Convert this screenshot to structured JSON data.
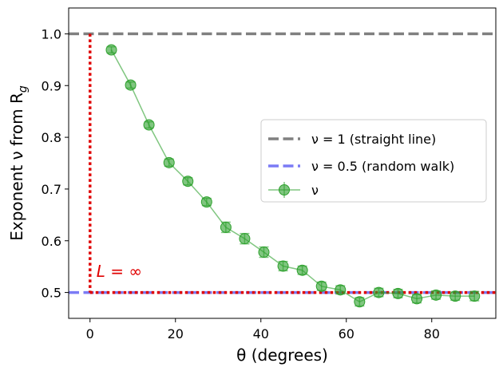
{
  "chart_data": {
    "type": "line",
    "title": "",
    "xlabel": "θ (degrees)",
    "ylabel": "Exponent ν from R",
    "ylabel_subscript": "g",
    "xlim": [
      -5,
      95
    ],
    "ylim": [
      0.45,
      1.05
    ],
    "xticks": [
      0,
      20,
      40,
      60,
      80
    ],
    "xtick_labels": [
      "0",
      "20",
      "40",
      "60",
      "80"
    ],
    "yticks": [
      0.5,
      0.6,
      0.7,
      0.8,
      0.9,
      1.0
    ],
    "ytick_labels": [
      "0.5",
      "0.6",
      "0.7",
      "0.8",
      "0.9",
      "1.0"
    ],
    "grid": false,
    "legend_position": "center-right",
    "reference_lines": [
      {
        "name": "ν = 1 (straight line)",
        "y": 1.0,
        "color": "#808080",
        "style": "dashed"
      },
      {
        "name": "ν = 0.5 (random walk)",
        "y": 0.5,
        "color": "#7b7bf5",
        "style": "dashed"
      }
    ],
    "infinite_limit": {
      "label": "L = ∞",
      "color": "#e00000",
      "style": "dotted",
      "vertical_x": 0,
      "horizontal_y": 0.5,
      "y_top": 1.0
    },
    "series": [
      {
        "name": "ν",
        "color": "#2ca02c",
        "x": [
          5,
          9.5,
          13.8,
          18.5,
          22.9,
          27.3,
          31.8,
          36.2,
          40.7,
          45.2,
          49.7,
          54.2,
          58.6,
          63.1,
          67.6,
          72.1,
          76.5,
          81,
          85.5,
          90
        ],
        "y": [
          0.969,
          0.901,
          0.824,
          0.751,
          0.715,
          0.675,
          0.626,
          0.604,
          0.578,
          0.551,
          0.543,
          0.512,
          0.505,
          0.482,
          0.5,
          0.498,
          0.488,
          0.495,
          0.493,
          0.493
        ],
        "yerr": [
          0.006,
          0.006,
          0.006,
          0.007,
          0.007,
          0.007,
          0.01,
          0.01,
          0.01,
          0.009,
          0.008,
          0.008,
          0.008,
          0.008,
          0.008,
          0.008,
          0.008,
          0.008,
          0.008,
          0.009
        ]
      }
    ],
    "legend_entries": [
      {
        "text": "ν = 1 (straight line)"
      },
      {
        "text": "ν = 0.5 (random walk)"
      },
      {
        "text": "ν"
      }
    ]
  }
}
